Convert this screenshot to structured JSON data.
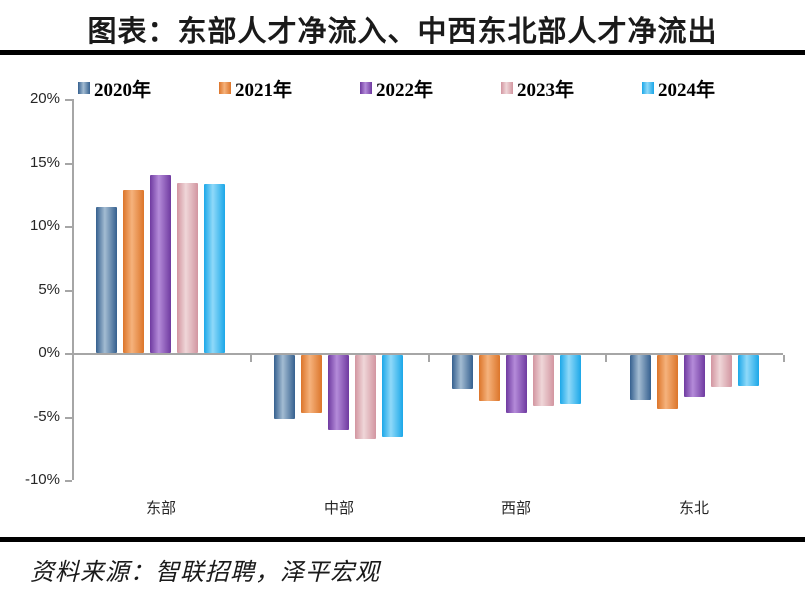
{
  "page": {
    "title": "图表：东部人才净流入、中西东北部人才净流出",
    "source": "资料来源：智联招聘，泽平宏观"
  },
  "colors": {
    "rule": "#000000",
    "axis": "#a6a6a6",
    "text": "#262626"
  },
  "chart_data": {
    "type": "bar",
    "title": "图表：东部人才净流入、中西东北部人才净流出",
    "categories": [
      "东部",
      "中部",
      "西部",
      "东北"
    ],
    "series": [
      {
        "name": "2020年",
        "color_dark": "#35608f",
        "color_light": "#a3bcd2",
        "values": [
          11.5,
          -5.2,
          -2.8,
          -3.7
        ]
      },
      {
        "name": "2021年",
        "color_dark": "#dc752a",
        "color_light": "#f5b27c",
        "values": [
          12.8,
          -4.7,
          -3.8,
          -4.4
        ]
      },
      {
        "name": "2022年",
        "color_dark": "#6f3aa0",
        "color_light": "#b48bd9",
        "values": [
          14.0,
          -6.1,
          -4.7,
          -3.5
        ]
      },
      {
        "name": "2023年",
        "color_dark": "#d295a0",
        "color_light": "#efd6d8",
        "values": [
          13.4,
          -6.8,
          -4.2,
          -2.7
        ]
      },
      {
        "name": "2024年",
        "color_dark": "#1ba7e8",
        "color_light": "#8fd9f9",
        "values": [
          13.3,
          -6.6,
          -4.0,
          -2.6
        ]
      }
    ],
    "ylabel": "",
    "xlabel": "",
    "ylim": [
      -10,
      20
    ],
    "ytick_step": 5,
    "ytick_labels": [
      "20%",
      "15%",
      "10%",
      "5%",
      "0%",
      "-5%",
      "-10%"
    ],
    "legend_position": "top",
    "grid": false
  }
}
